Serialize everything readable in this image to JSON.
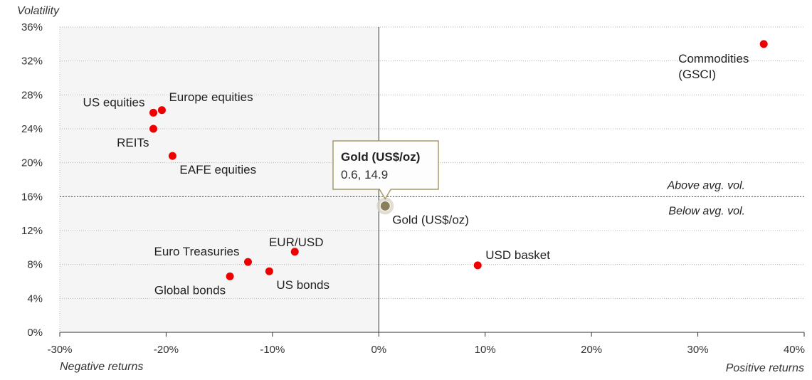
{
  "chart_data": {
    "type": "scatter",
    "ylabel": "Volatility",
    "xlabel_left": "Negative returns",
    "xlabel_right": "Positive returns",
    "xlim": [
      -30,
      40
    ],
    "ylim": [
      0,
      36
    ],
    "x_ticks": [
      -30,
      -20,
      -10,
      0,
      10,
      20,
      30,
      40
    ],
    "x_tick_labels": [
      "-30%",
      "-20%",
      "-10%",
      "0%",
      "10%",
      "20%",
      "30%",
      "40%"
    ],
    "y_ticks": [
      0,
      4,
      8,
      12,
      16,
      20,
      24,
      28,
      32,
      36
    ],
    "y_tick_labels": [
      "0%",
      "4%",
      "8%",
      "12%",
      "16%",
      "20%",
      "24%",
      "28%",
      "32%",
      "36%"
    ],
    "grid": "horizontal dotted",
    "threshold_y": 16,
    "threshold_above_label": "Above avg. vol.",
    "threshold_below_label": "Below avg. vol.",
    "negative_region_shaded": true,
    "points": [
      {
        "label": "US equities",
        "x": -21.2,
        "y": 25.9,
        "label_pos": "above-left"
      },
      {
        "label": "Europe equities",
        "x": -20.4,
        "y": 26.2,
        "label_pos": "above-right"
      },
      {
        "label": "REITs",
        "x": -21.2,
        "y": 24.0,
        "label_pos": "below-left"
      },
      {
        "label": "EAFE equities",
        "x": -19.4,
        "y": 20.8,
        "label_pos": "below-right"
      },
      {
        "label": "Commodities (GSCI)",
        "lines": [
          "Commodities",
          "(GSCI)"
        ],
        "x": 36.2,
        "y": 34.0,
        "label_pos": "below-left"
      },
      {
        "label": "Gold (US$/oz)",
        "x": 0.6,
        "y": 14.9,
        "label_pos": "below-right",
        "highlighted": true
      },
      {
        "label": "USD basket",
        "x": 9.3,
        "y": 7.9,
        "label_pos": "right"
      },
      {
        "label": "EUR/USD",
        "x": -7.9,
        "y": 9.5,
        "label_pos": "above"
      },
      {
        "label": "Euro Treasuries",
        "x": -12.3,
        "y": 8.3,
        "label_pos": "above-left"
      },
      {
        "label": "US bonds",
        "x": -10.3,
        "y": 7.2,
        "label_pos": "below-right"
      },
      {
        "label": "Global bonds",
        "x": -14.0,
        "y": 6.6,
        "label_pos": "below-left"
      }
    ],
    "tooltip": {
      "title": "Gold (US$/oz)",
      "value": "0.6, 14.9"
    }
  },
  "colors": {
    "point": "#ee0000",
    "highlight": "#8a7f5c",
    "highlight_halo": "#d9d4c6",
    "negative_region": "#f5f5f5",
    "grid": "#b8b8b8",
    "axis": "#333333",
    "tooltip_border": "#a89a6a"
  }
}
